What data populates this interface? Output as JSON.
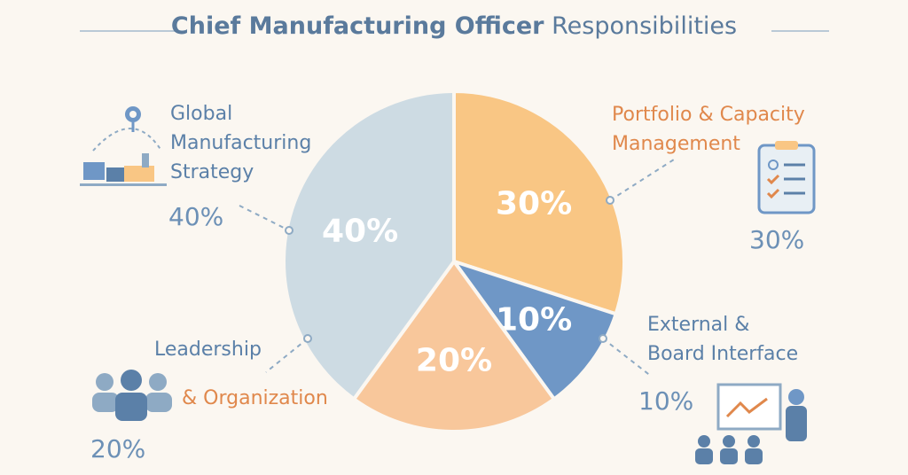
{
  "title": {
    "bold": "Chief Manufacturing Officer",
    "rest": "Responsibilities"
  },
  "chart_data": {
    "type": "pie",
    "title": "Chief Manufacturing Officer Responsibilities",
    "categories": [
      "Portfolio & Capacity Management",
      "External & Board Interface",
      "Leadership & Organization",
      "Global Manufacturing Strategy"
    ],
    "values": [
      30,
      10,
      20,
      40
    ],
    "value_labels": [
      "30%",
      "10%",
      "20%",
      "40%"
    ],
    "colors": [
      "#f9c684",
      "#6f97c6",
      "#f8c79b",
      "#cddbe3"
    ]
  },
  "labels": {
    "global": {
      "line1": "Global",
      "line2": "Manufacturing",
      "line3": "Strategy",
      "pct": "40%"
    },
    "portfolio": {
      "line1": "Portfolio & Capacity",
      "line2": "Management",
      "pct": "30%"
    },
    "external": {
      "line1": "External &",
      "line2": "Board Interface",
      "pct": "10%"
    },
    "leadership": {
      "line1": "Leadership",
      "line2": "& Organization",
      "pct": "20%"
    }
  },
  "icons": [
    "factory-globe-icon",
    "clipboard-checklist-icon",
    "presentation-icon",
    "team-icon"
  ]
}
